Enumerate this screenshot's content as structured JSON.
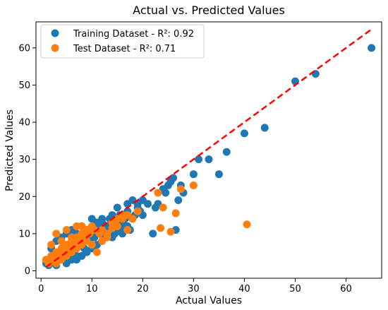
{
  "chart_data": {
    "type": "scatter",
    "title": "Actual vs. Predicted Values",
    "xlabel": "Actual Values",
    "ylabel": "Predicted Values",
    "xlim": [
      -1,
      67
    ],
    "ylim": [
      -2,
      67
    ],
    "xticks": [
      0,
      10,
      20,
      30,
      40,
      50,
      60
    ],
    "yticks": [
      0,
      10,
      20,
      30,
      40,
      50,
      60
    ],
    "grid": false,
    "legend_position": "top-left",
    "reference_line": {
      "from": [
        1,
        1
      ],
      "to": [
        65,
        65
      ],
      "color": "#ff0000",
      "style": "dashed"
    },
    "series": [
      {
        "name": "Training Dataset - R²: 0.92",
        "color": "#1f77b4",
        "points": [
          [
            1,
            2
          ],
          [
            1.5,
            1.5
          ],
          [
            2,
            3
          ],
          [
            2.5,
            4
          ],
          [
            3,
            2.5
          ],
          [
            3.5,
            5
          ],
          [
            4,
            3
          ],
          [
            4.5,
            6
          ],
          [
            5,
            4
          ],
          [
            5.5,
            7
          ],
          [
            6,
            5
          ],
          [
            6.5,
            8
          ],
          [
            7,
            4
          ],
          [
            7.5,
            7
          ],
          [
            8,
            9
          ],
          [
            8.5,
            6
          ],
          [
            9,
            10
          ],
          [
            9.5,
            8
          ],
          [
            10,
            11
          ],
          [
            10.5,
            9
          ],
          [
            11,
            12
          ],
          [
            11.5,
            10
          ],
          [
            12,
            13
          ],
          [
            12.5,
            9
          ],
          [
            13,
            11
          ],
          [
            13.5,
            14
          ],
          [
            14,
            12
          ],
          [
            14.5,
            10
          ],
          [
            15,
            13
          ],
          [
            15.5,
            15
          ],
          [
            16,
            12
          ],
          [
            16.5,
            14
          ],
          [
            17,
            16
          ],
          [
            17.5,
            11
          ],
          [
            18,
            19
          ],
          [
            18.5,
            15
          ],
          [
            19,
            17
          ],
          [
            19.5,
            16
          ],
          [
            20,
            19
          ],
          [
            21,
            18
          ],
          [
            22,
            10
          ],
          [
            22.5,
            17
          ],
          [
            23,
            18
          ],
          [
            24,
            22
          ],
          [
            24.5,
            21
          ],
          [
            25,
            23
          ],
          [
            25.5,
            24
          ],
          [
            26,
            25
          ],
          [
            26.5,
            11
          ],
          [
            27,
            19
          ],
          [
            27.5,
            23
          ],
          [
            28,
            21
          ],
          [
            30,
            26
          ],
          [
            31,
            30
          ],
          [
            33,
            30
          ],
          [
            35,
            26
          ],
          [
            36.5,
            32
          ],
          [
            40,
            37
          ],
          [
            44,
            38.5
          ],
          [
            50,
            51
          ],
          [
            54,
            53
          ],
          [
            65,
            60
          ],
          [
            2,
            6
          ],
          [
            3,
            8
          ],
          [
            4,
            9
          ],
          [
            5,
            10
          ],
          [
            6,
            11
          ],
          [
            7,
            10
          ],
          [
            8,
            12
          ],
          [
            9,
            11
          ],
          [
            10,
            14
          ],
          [
            11,
            13
          ],
          [
            12,
            14
          ],
          [
            13,
            12
          ],
          [
            14,
            15
          ],
          [
            15,
            17
          ],
          [
            16,
            13
          ],
          [
            17,
            18
          ],
          [
            18,
            14
          ],
          [
            19,
            18
          ],
          [
            20,
            15
          ],
          [
            6,
            3
          ],
          [
            8,
            4
          ],
          [
            10,
            6
          ],
          [
            12,
            8
          ],
          [
            14,
            9
          ],
          [
            16,
            10
          ],
          [
            3,
            1.5
          ],
          [
            5,
            2
          ],
          [
            7,
            3
          ],
          [
            9,
            5
          ],
          [
            11,
            7
          ],
          [
            13,
            9
          ],
          [
            15,
            11
          ],
          [
            17,
            12
          ]
        ]
      },
      {
        "name": "Test Dataset - R²: 0.71",
        "color": "#ff7f0e",
        "points": [
          [
            1,
            3
          ],
          [
            1.5,
            2
          ],
          [
            2,
            4
          ],
          [
            2.5,
            3
          ],
          [
            3,
            5
          ],
          [
            3.5,
            4
          ],
          [
            4,
            6
          ],
          [
            4.5,
            5
          ],
          [
            5,
            7
          ],
          [
            5.5,
            6
          ],
          [
            6,
            8
          ],
          [
            6.5,
            7
          ],
          [
            7,
            9
          ],
          [
            7.5,
            8
          ],
          [
            8,
            10
          ],
          [
            8.5,
            9
          ],
          [
            9,
            11
          ],
          [
            9.5,
            10
          ],
          [
            10,
            12
          ],
          [
            10.5,
            11
          ],
          [
            11,
            5
          ],
          [
            11.5,
            10
          ],
          [
            12,
            11
          ],
          [
            13,
            10
          ],
          [
            14,
            13
          ],
          [
            15,
            12
          ],
          [
            16,
            14
          ],
          [
            17,
            15
          ],
          [
            18,
            14
          ],
          [
            19,
            16
          ],
          [
            23,
            21
          ],
          [
            23.5,
            11.5
          ],
          [
            24,
            17
          ],
          [
            25.5,
            10.5
          ],
          [
            26.5,
            15.5
          ],
          [
            27.5,
            22
          ],
          [
            30,
            23
          ],
          [
            40.5,
            12.5
          ],
          [
            3,
            2
          ],
          [
            4,
            3
          ],
          [
            5,
            4
          ],
          [
            6,
            5
          ],
          [
            7,
            6
          ],
          [
            8,
            7
          ],
          [
            9,
            8
          ],
          [
            2,
            7
          ],
          [
            4,
            8
          ],
          [
            6,
            9
          ],
          [
            8,
            12
          ],
          [
            3,
            10
          ],
          [
            5,
            11
          ],
          [
            7,
            12
          ],
          [
            12,
            8
          ],
          [
            13,
            9
          ],
          [
            10,
            7
          ],
          [
            16,
            15
          ],
          [
            17,
            11
          ],
          [
            14,
            11.5
          ],
          [
            15,
            14
          ]
        ]
      }
    ]
  }
}
